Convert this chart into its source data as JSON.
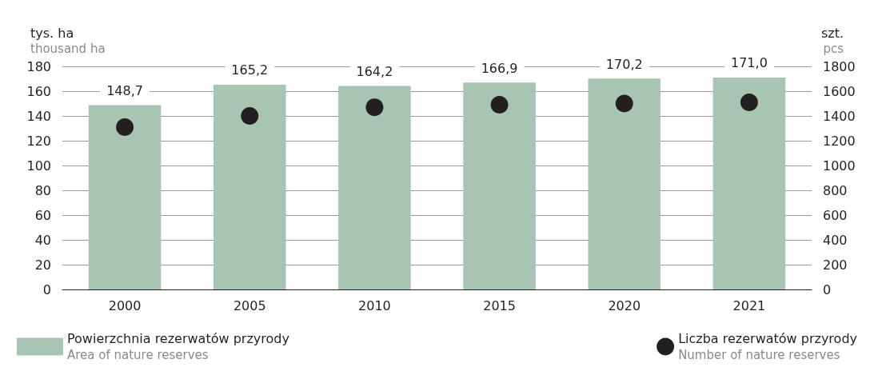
{
  "chart_data": {
    "type": "bar",
    "ylabel": "tys. ha\nthousand ha",
    "y2label": "szt.\npcs",
    "categories": [
      "2000",
      "2005",
      "2010",
      "2015",
      "2020",
      "2021"
    ],
    "series": [
      {
        "type": "bar",
        "name": "Powierzchnia rezerwatów przyrody\nArea of nature reserves",
        "color": "#a8c5b3",
        "values": [
          148.7,
          165.2,
          164.2,
          166.9,
          170.2,
          171.0
        ],
        "value_labels": [
          "148,7",
          "165,2",
          "164,2",
          "166,9",
          "170,2",
          "171,0"
        ]
      },
      {
        "type": "scatter",
        "name": "Liczba rezerwatów przyrody\nNumber of nature reserves",
        "color": "#231f20",
        "axis": "y2",
        "values": [
          1310,
          1400,
          1470,
          1490,
          1500,
          1510
        ]
      }
    ],
    "ylim": [
      0,
      180
    ],
    "yticks": [
      0,
      20,
      40,
      60,
      80,
      100,
      120,
      140,
      160,
      180
    ],
    "y2lim": [
      0,
      1800
    ],
    "y2ticks": [
      0,
      200,
      400,
      600,
      800,
      1000,
      1200,
      1400,
      1600,
      1800
    ],
    "grid": "y",
    "legend": "bottom",
    "marker": "circle"
  }
}
